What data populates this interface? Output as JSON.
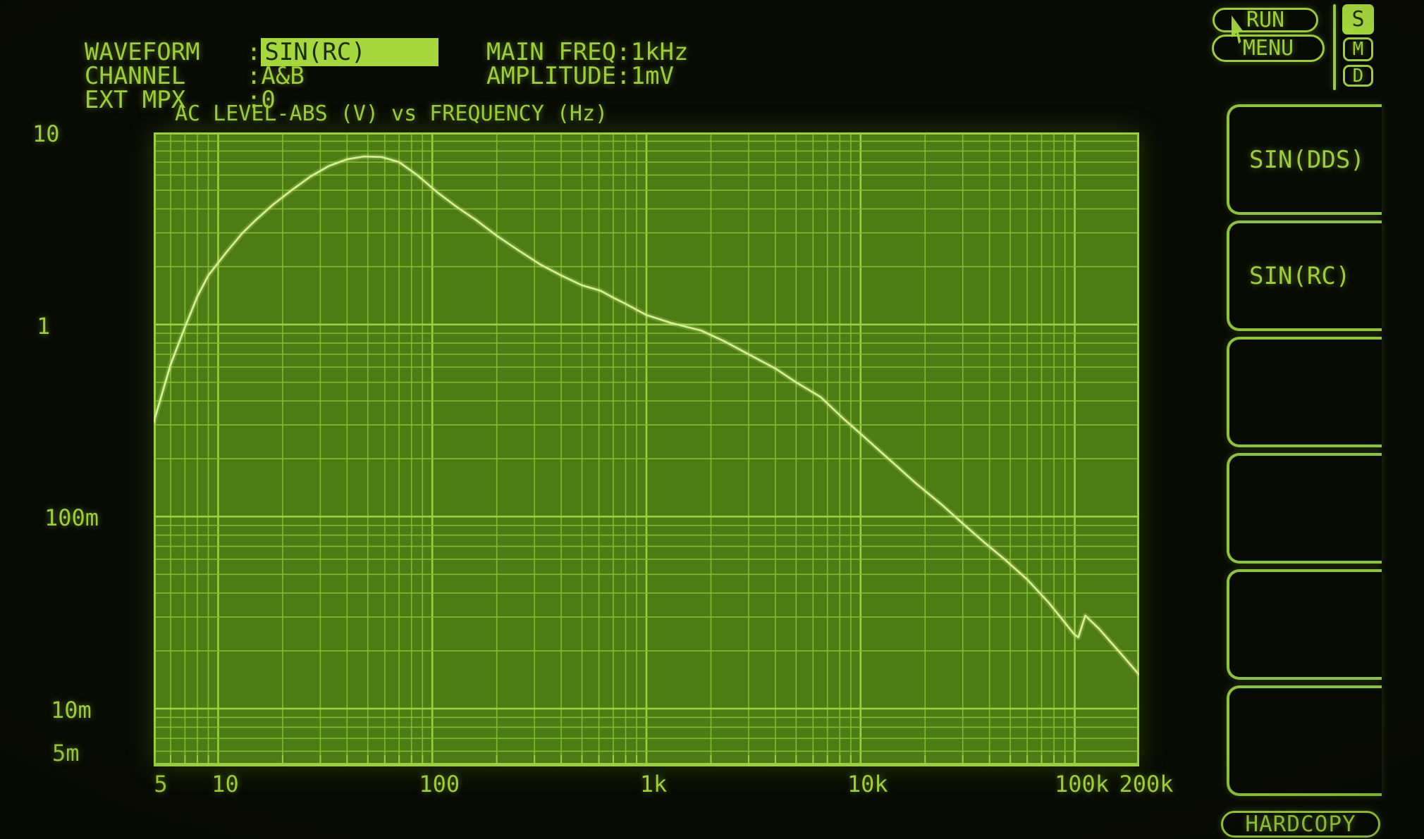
{
  "colors": {
    "screen_bg": "#080b03",
    "txt": "#9bcf33",
    "hl": "#a5d83c",
    "hl_text": "#1c2d07",
    "plot_bg": "#4e7c14",
    "grid_minor": "#82bb2e",
    "grid_major": "#98d040",
    "curve": "#d6ee92",
    "box": "#8cc436"
  },
  "status": {
    "left": [
      {
        "label": "WAVEFORM",
        "sep": ":",
        "value": "SIN(RC)",
        "highlighted": true
      },
      {
        "label": "CHANNEL",
        "sep": ":",
        "value": "A&B",
        "highlighted": false
      },
      {
        "label": "EXT MPX",
        "sep": ":",
        "value": "0",
        "highlighted": false
      }
    ],
    "right": [
      {
        "label": "MAIN FREQ",
        "sep": ":",
        "value": "1kHz"
      },
      {
        "label": "AMPLITUDE",
        "sep": ":",
        "value": "1mV"
      }
    ]
  },
  "top_buttons": {
    "run": "RUN",
    "menu": "MENU"
  },
  "mode_indicators": [
    {
      "label": "S",
      "active": true
    },
    {
      "label": "M",
      "active": false
    },
    {
      "label": "D",
      "active": false
    }
  ],
  "side_menu": {
    "items": [
      {
        "label": "SIN(DDS)"
      },
      {
        "label": "SIN(RC)"
      },
      {
        "label": ""
      },
      {
        "label": ""
      },
      {
        "label": ""
      },
      {
        "label": ""
      }
    ]
  },
  "hardcopy_button": "HARDCOPY",
  "chart_data": {
    "type": "line",
    "title": "AC LEVEL-ABS (V) vs FREQUENCY (Hz)",
    "xlabel": "FREQUENCY (Hz)",
    "ylabel": "AC LEVEL-ABS (V)",
    "x_scale": "log",
    "y_scale": "log",
    "x_range": [
      5,
      200000
    ],
    "y_range": [
      0.005,
      10
    ],
    "grid": true,
    "legend": "none",
    "xticks": [
      {
        "value": 5,
        "label": "5"
      },
      {
        "value": 10,
        "label": "10"
      },
      {
        "value": 100,
        "label": "100"
      },
      {
        "value": 1000,
        "label": "1k"
      },
      {
        "value": 10000,
        "label": "10k"
      },
      {
        "value": 100000,
        "label": "100k"
      },
      {
        "value": 200000,
        "label": "200k"
      }
    ],
    "yticks": [
      {
        "value": 10,
        "label": "10"
      },
      {
        "value": 1,
        "label": "1"
      },
      {
        "value": 0.1,
        "label": "100m"
      },
      {
        "value": 0.01,
        "label": "10m"
      },
      {
        "value": 0.005,
        "label": "5m"
      }
    ],
    "series": [
      {
        "name": "AC LEVEL-ABS",
        "points": [
          [
            5,
            0.31
          ],
          [
            6,
            0.62
          ],
          [
            7,
            0.97
          ],
          [
            8,
            1.4
          ],
          [
            9,
            1.8
          ],
          [
            11,
            2.4
          ],
          [
            13,
            3.0
          ],
          [
            15,
            3.5
          ],
          [
            18,
            4.2
          ],
          [
            22,
            5.0
          ],
          [
            27,
            5.9
          ],
          [
            33,
            6.7
          ],
          [
            40,
            7.25
          ],
          [
            48,
            7.5
          ],
          [
            58,
            7.45
          ],
          [
            70,
            7.0
          ],
          [
            85,
            6.0
          ],
          [
            105,
            4.9
          ],
          [
            130,
            4.1
          ],
          [
            160,
            3.5
          ],
          [
            200,
            2.9
          ],
          [
            250,
            2.45
          ],
          [
            320,
            2.05
          ],
          [
            400,
            1.8
          ],
          [
            500,
            1.6
          ],
          [
            610,
            1.5
          ],
          [
            700,
            1.38
          ],
          [
            800,
            1.28
          ],
          [
            1000,
            1.12
          ],
          [
            1300,
            1.02
          ],
          [
            1800,
            0.93
          ],
          [
            2300,
            0.82
          ],
          [
            3000,
            0.7
          ],
          [
            4000,
            0.59
          ],
          [
            5000,
            0.5
          ],
          [
            6500,
            0.42
          ],
          [
            8400,
            0.32
          ],
          [
            10000,
            0.27
          ],
          [
            12000,
            0.225
          ],
          [
            15000,
            0.18
          ],
          [
            18000,
            0.15
          ],
          [
            24000,
            0.115
          ],
          [
            30000,
            0.092
          ],
          [
            38000,
            0.073
          ],
          [
            47000,
            0.06
          ],
          [
            60000,
            0.047
          ],
          [
            75000,
            0.036
          ],
          [
            90000,
            0.028
          ],
          [
            99000,
            0.0245
          ],
          [
            104000,
            0.0235
          ],
          [
            112000,
            0.0305
          ],
          [
            130000,
            0.026
          ],
          [
            160000,
            0.02
          ],
          [
            200000,
            0.015
          ]
        ]
      }
    ]
  }
}
